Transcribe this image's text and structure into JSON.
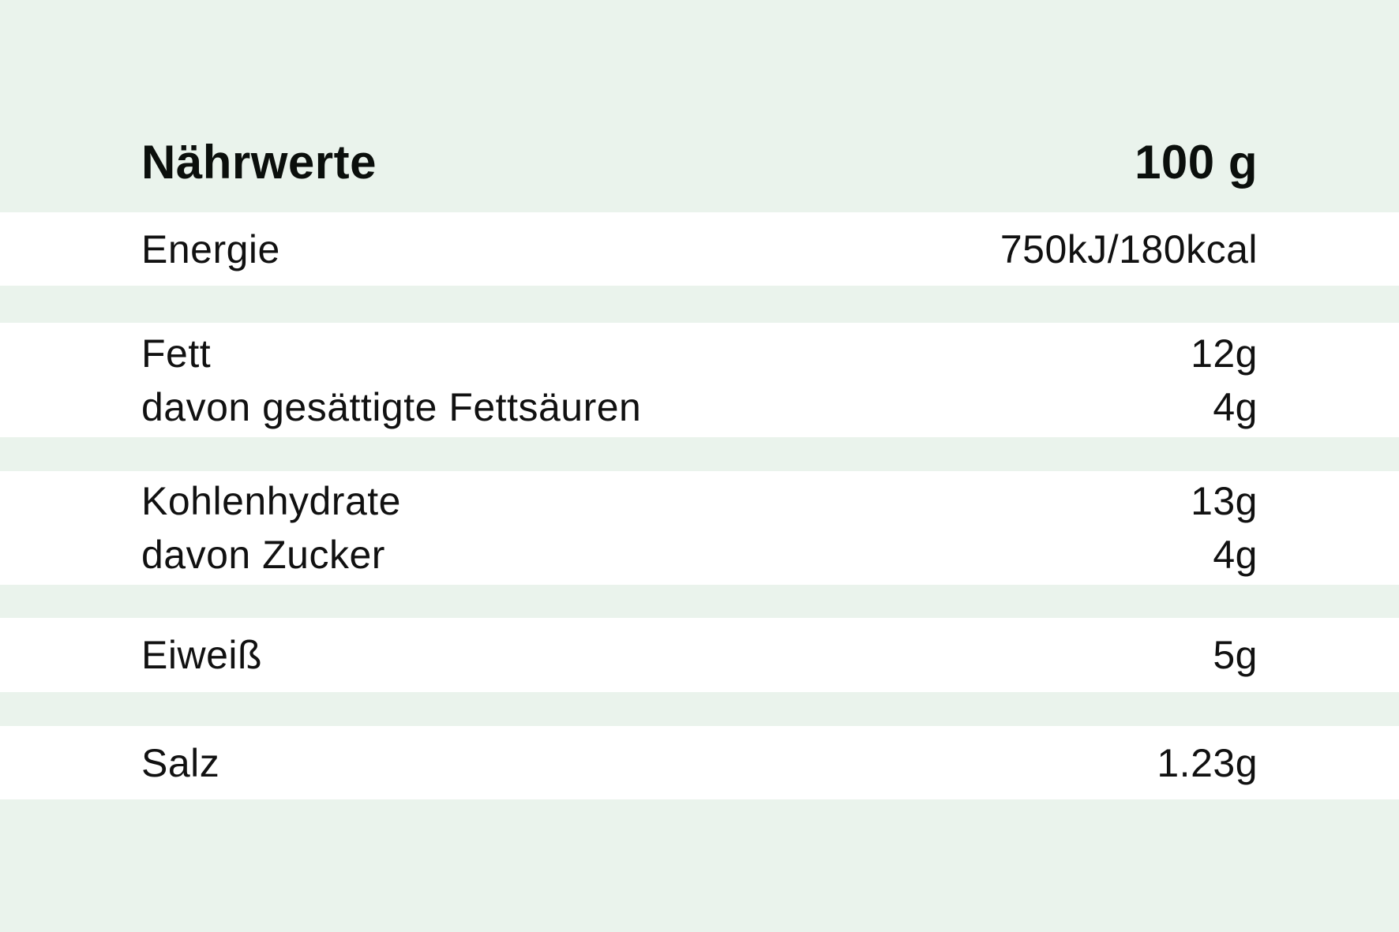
{
  "header": {
    "title": "Nährwerte",
    "amount": "100 g"
  },
  "groups": [
    {
      "rows": [
        {
          "label": "Energie",
          "value": "750kJ/180kcal"
        }
      ]
    },
    {
      "rows": [
        {
          "label": "Fett",
          "value": "12g"
        },
        {
          "label": "davon gesättigte Fettsäuren",
          "value": "4g"
        }
      ]
    },
    {
      "rows": [
        {
          "label": "Kohlenhydrate",
          "value": "13g"
        },
        {
          "label": "davon Zucker",
          "value": "4g"
        }
      ]
    },
    {
      "rows": [
        {
          "label": "Eiweiß",
          "value": "5g"
        }
      ]
    },
    {
      "rows": [
        {
          "label": "Salz",
          "value": "1.23g"
        }
      ]
    }
  ],
  "colors": {
    "background": "#eaf3ec",
    "band": "#ffffff",
    "text": "#111111"
  }
}
